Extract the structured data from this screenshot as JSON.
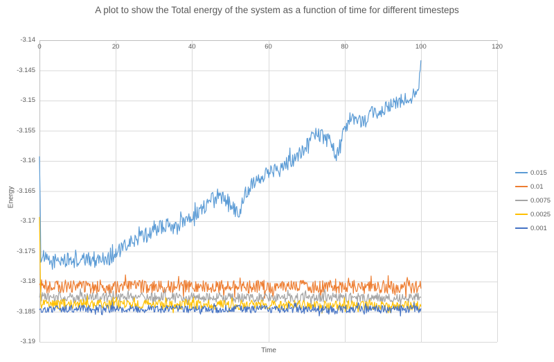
{
  "page": {
    "background": "#FFFFFF",
    "text_color": "#595959"
  },
  "chart_data": {
    "type": "line",
    "title": "A plot to show the Total energy of the system as a function of time for different timesteps",
    "xlabel": "Time",
    "ylabel": "Energy",
    "xlim": [
      0,
      120
    ],
    "ylim": [
      -3.19,
      -3.14
    ],
    "x_ticks": [
      0,
      20,
      40,
      60,
      80,
      100,
      120
    ],
    "x_tick_labels": [
      "0",
      "20",
      "40",
      "60",
      "80",
      "100",
      "120"
    ],
    "y_ticks": [
      -3.14,
      -3.145,
      -3.15,
      -3.155,
      -3.16,
      -3.165,
      -3.17,
      -3.175,
      -3.18,
      -3.185,
      -3.19
    ],
    "y_tick_labels": [
      "-3.14",
      "-3.145",
      "-3.15",
      "-3.155",
      "-3.16",
      "-3.165",
      "-3.17",
      "-3.175",
      "-3.18",
      "-3.185",
      "-3.19"
    ],
    "grid": true,
    "gridline_color": "#D9D9D9",
    "axis_color": "#BFBFBF",
    "text_color": "#595959",
    "legend_position": "right",
    "t_range": [
      0,
      100
    ],
    "n_points": 560,
    "series": [
      {
        "name": "0.015",
        "color": "#5B9BD5",
        "noise": 0.0012,
        "anchors": [
          [
            0,
            -3.159
          ],
          [
            0.35,
            -3.1757
          ],
          [
            3,
            -3.1769
          ],
          [
            6,
            -3.1764
          ],
          [
            10,
            -3.1766
          ],
          [
            14,
            -3.1762
          ],
          [
            18,
            -3.1762
          ],
          [
            20,
            -3.1754
          ],
          [
            23,
            -3.1739
          ],
          [
            26,
            -3.1728
          ],
          [
            28,
            -3.1724
          ],
          [
            31,
            -3.1711
          ],
          [
            34,
            -3.1706
          ],
          [
            36,
            -3.1712
          ],
          [
            38,
            -3.1697
          ],
          [
            41,
            -3.1688
          ],
          [
            44,
            -3.1672
          ],
          [
            47,
            -3.1662
          ],
          [
            50,
            -3.1664
          ],
          [
            52,
            -3.169
          ],
          [
            54,
            -3.1654
          ],
          [
            56,
            -3.1634
          ],
          [
            58,
            -3.1626
          ],
          [
            60,
            -3.162
          ],
          [
            63,
            -3.1608
          ],
          [
            66,
            -3.1598
          ],
          [
            68,
            -3.1588
          ],
          [
            70,
            -3.1575
          ],
          [
            72,
            -3.1552
          ],
          [
            74,
            -3.1558
          ],
          [
            76,
            -3.1568
          ],
          [
            78,
            -3.1591
          ],
          [
            79,
            -3.1565
          ],
          [
            81,
            -3.1538
          ],
          [
            83,
            -3.153
          ],
          [
            85,
            -3.1536
          ],
          [
            87,
            -3.1522
          ],
          [
            89,
            -3.1518
          ],
          [
            91,
            -3.1512
          ],
          [
            93,
            -3.1507
          ],
          [
            95,
            -3.15
          ],
          [
            97,
            -3.1495
          ],
          [
            98.5,
            -3.1482
          ],
          [
            99.6,
            -3.1468
          ],
          [
            100,
            -3.1432
          ]
        ]
      },
      {
        "name": "0.01",
        "color": "#ED7D31",
        "noise": 0.0011,
        "anchors": [
          [
            0,
            -3.1808
          ],
          [
            100,
            -3.1809
          ]
        ]
      },
      {
        "name": "0.0075",
        "color": "#A5A5A5",
        "noise": 0.0008,
        "anchors": [
          [
            0,
            -3.1826
          ],
          [
            100,
            -3.1827
          ]
        ]
      },
      {
        "name": "0.0025",
        "color": "#FFC000",
        "noise": 0.0008,
        "anchors": [
          [
            0,
            -3.169
          ],
          [
            0.35,
            -3.1837
          ],
          [
            100,
            -3.184
          ]
        ]
      },
      {
        "name": "0.001",
        "color": "#4472C4",
        "noise": 0.00065,
        "anchors": [
          [
            0,
            -3.1845
          ],
          [
            100,
            -3.1846
          ]
        ]
      }
    ]
  }
}
